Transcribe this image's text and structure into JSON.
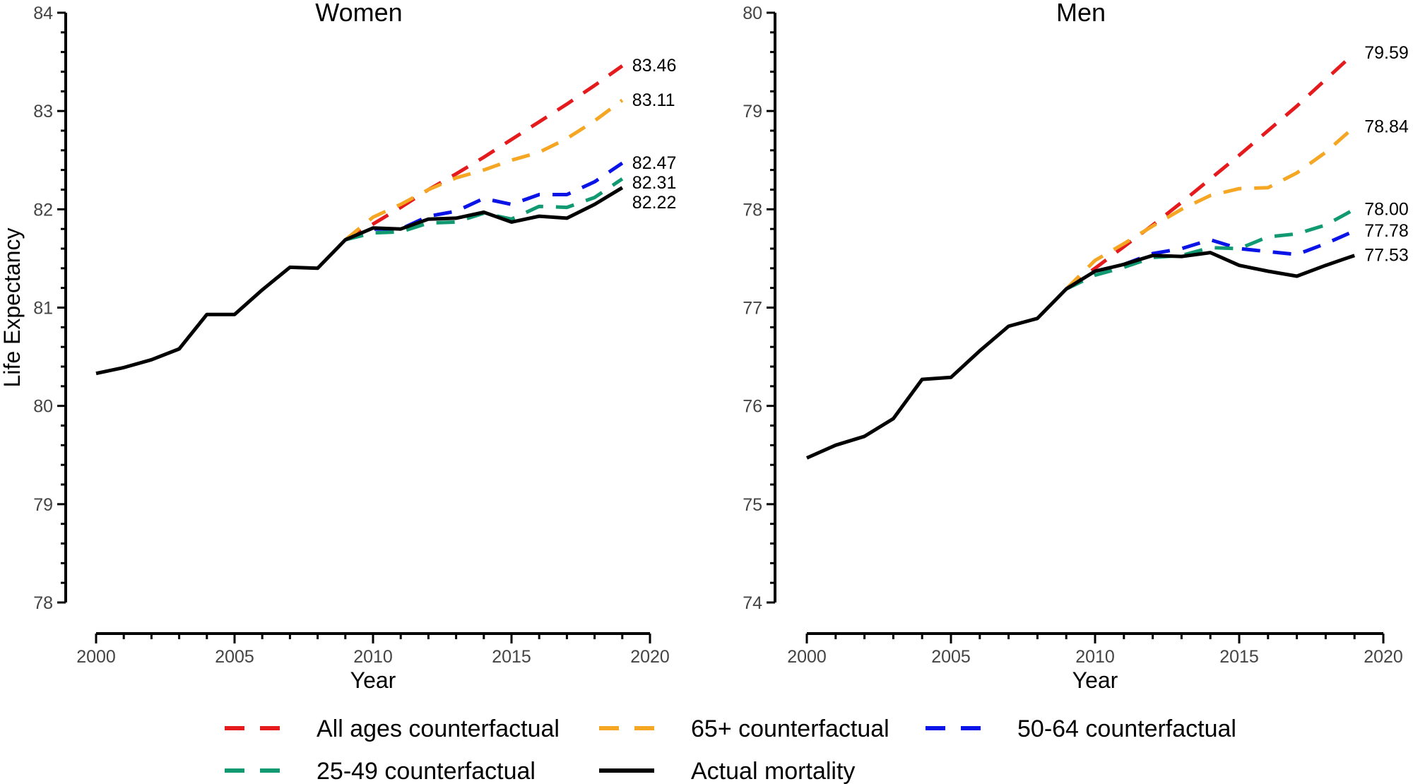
{
  "legend": [
    {
      "label": "All ages counterfactual",
      "color": "#e41a1c",
      "dashed": true
    },
    {
      "label": "65+ counterfactual",
      "color": "#f5a623",
      "dashed": true
    },
    {
      "label": "50-64 counterfactual",
      "color": "#0a14e6",
      "dashed": true
    },
    {
      "label": "25-49 counterfactual",
      "color": "#119a72",
      "dashed": true
    },
    {
      "label": "Actual mortality",
      "color": "#000000",
      "dashed": false
    }
  ],
  "chart_data": [
    {
      "type": "line",
      "title": "Women",
      "xlabel": "Year",
      "ylabel": "Life Expectancy",
      "xlim": [
        2000,
        2020
      ],
      "ylim": [
        78,
        84
      ],
      "xticks": [
        2000,
        2005,
        2010,
        2015,
        2020
      ],
      "yticks": [
        78,
        79,
        80,
        81,
        82,
        83,
        84
      ],
      "grid": false,
      "series": [
        {
          "name": "Actual mortality",
          "x": [
            2000,
            2001,
            2002,
            2003,
            2004,
            2005,
            2006,
            2007,
            2008,
            2009,
            2010,
            2011,
            2012,
            2013,
            2014,
            2015,
            2016,
            2017,
            2018,
            2019
          ],
          "values": [
            80.33,
            80.39,
            80.47,
            80.58,
            80.93,
            80.93,
            81.18,
            81.41,
            81.4,
            81.69,
            81.81,
            81.8,
            81.9,
            81.91,
            81.97,
            81.87,
            81.93,
            81.91,
            82.05,
            82.22
          ],
          "end_label": "82.22"
        },
        {
          "name": "All ages counterfactual",
          "x": [
            2009,
            2010,
            2011,
            2012,
            2013,
            2014,
            2015,
            2016,
            2017,
            2018,
            2019
          ],
          "values": [
            81.69,
            81.85,
            82.02,
            82.2,
            82.36,
            82.53,
            82.71,
            82.89,
            83.07,
            83.26,
            83.46
          ],
          "end_label": "83.46"
        },
        {
          "name": "65+ counterfactual",
          "x": [
            2009,
            2010,
            2011,
            2012,
            2013,
            2014,
            2015,
            2016,
            2017,
            2018,
            2019
          ],
          "values": [
            81.69,
            81.92,
            82.05,
            82.2,
            82.32,
            82.4,
            82.5,
            82.58,
            82.72,
            82.9,
            83.11
          ],
          "end_label": "83.11"
        },
        {
          "name": "50-64 counterfactual",
          "x": [
            2009,
            2010,
            2011,
            2012,
            2013,
            2014,
            2015,
            2016,
            2017,
            2018,
            2019
          ],
          "values": [
            81.69,
            81.8,
            81.8,
            81.93,
            81.98,
            82.11,
            82.05,
            82.15,
            82.15,
            82.28,
            82.47
          ],
          "end_label": "82.47"
        },
        {
          "name": "25-49 counterfactual",
          "x": [
            2009,
            2010,
            2011,
            2012,
            2013,
            2014,
            2015,
            2016,
            2017,
            2018,
            2019
          ],
          "values": [
            81.69,
            81.76,
            81.77,
            81.86,
            81.87,
            81.96,
            81.9,
            82.03,
            82.02,
            82.12,
            82.31
          ],
          "end_label": "82.31"
        }
      ]
    },
    {
      "type": "line",
      "title": "Men",
      "xlabel": "Year",
      "ylabel": "",
      "xlim": [
        2000,
        2020
      ],
      "ylim": [
        74,
        80
      ],
      "xticks": [
        2000,
        2005,
        2010,
        2015,
        2020
      ],
      "yticks": [
        74,
        75,
        76,
        77,
        78,
        79,
        80
      ],
      "grid": false,
      "series": [
        {
          "name": "Actual mortality",
          "x": [
            2000,
            2001,
            2002,
            2003,
            2004,
            2005,
            2006,
            2007,
            2008,
            2009,
            2010,
            2011,
            2012,
            2013,
            2014,
            2015,
            2016,
            2017,
            2018,
            2019
          ],
          "values": [
            75.47,
            75.6,
            75.69,
            75.87,
            76.27,
            76.29,
            76.56,
            76.81,
            76.89,
            77.19,
            77.37,
            77.44,
            77.53,
            77.52,
            77.56,
            77.43,
            77.37,
            77.32,
            77.43,
            77.53
          ],
          "end_label": "77.53"
        },
        {
          "name": "All ages counterfactual",
          "x": [
            2009,
            2010,
            2011,
            2012,
            2013,
            2014,
            2015,
            2016,
            2017,
            2018,
            2019
          ],
          "values": [
            77.19,
            77.4,
            77.62,
            77.84,
            78.07,
            78.31,
            78.55,
            78.8,
            79.05,
            79.32,
            79.59
          ],
          "end_label": "79.59"
        },
        {
          "name": "65+ counterfactual",
          "x": [
            2009,
            2010,
            2011,
            2012,
            2013,
            2014,
            2015,
            2016,
            2017,
            2018,
            2019
          ],
          "values": [
            77.19,
            77.48,
            77.65,
            77.83,
            78.0,
            78.14,
            78.21,
            78.22,
            78.37,
            78.58,
            78.84
          ],
          "end_label": "78.84"
        },
        {
          "name": "50-64 counterfactual",
          "x": [
            2009,
            2010,
            2011,
            2012,
            2013,
            2014,
            2015,
            2016,
            2017,
            2018,
            2019
          ],
          "values": [
            77.19,
            77.37,
            77.44,
            77.55,
            77.6,
            77.69,
            77.6,
            77.57,
            77.54,
            77.65,
            77.78
          ],
          "end_label": "77.78"
        },
        {
          "name": "25-49 counterfactual",
          "x": [
            2009,
            2010,
            2011,
            2012,
            2013,
            2014,
            2015,
            2016,
            2017,
            2018,
            2019
          ],
          "values": [
            77.19,
            77.33,
            77.41,
            77.51,
            77.53,
            77.61,
            77.6,
            77.72,
            77.75,
            77.84,
            78.0
          ],
          "end_label": "78.00"
        }
      ]
    }
  ]
}
